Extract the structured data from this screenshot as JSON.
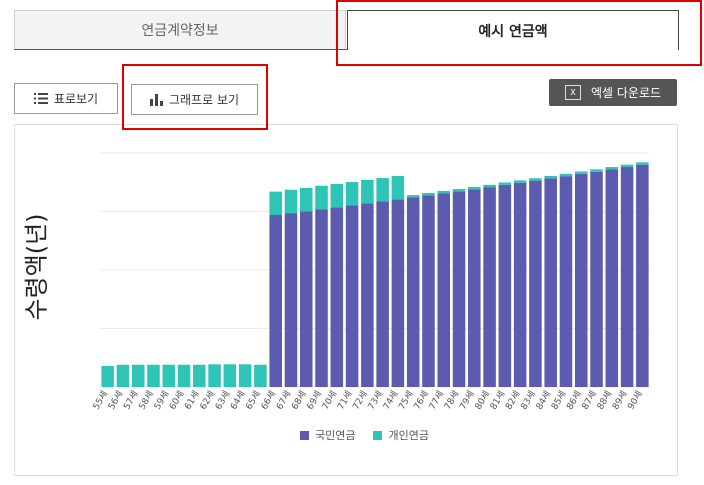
{
  "tabs": [
    {
      "label": "연금계약정보",
      "active": false
    },
    {
      "label": "예시 연금액",
      "active": true
    }
  ],
  "buttons": {
    "table_view": "표로보기",
    "graph_view": "그래프로 보기",
    "excel_download": "엑셀 다운로드"
  },
  "icons": {
    "table_view": "list-icon",
    "graph_view": "bar-chart-icon",
    "excel_download": "excel-icon"
  },
  "colors": {
    "national_pension": "#5b5bb0",
    "personal_pension": "#2ec4b6",
    "highlight": "#e00000"
  },
  "chart_data": {
    "type": "bar",
    "stacked": true,
    "ylabel": "수령액(년)",
    "xlabel": "",
    "categories": [
      "55세",
      "56세",
      "57세",
      "58세",
      "59세",
      "60세",
      "61세",
      "62세",
      "63세",
      "64세",
      "65세",
      "66세",
      "67세",
      "68세",
      "69세",
      "70세",
      "71세",
      "72세",
      "73세",
      "74세",
      "75세",
      "76세",
      "77세",
      "78세",
      "79세",
      "80세",
      "81세",
      "82세",
      "83세",
      "84세",
      "85세",
      "86세",
      "87세",
      "88세",
      "89세",
      "90세"
    ],
    "series": [
      {
        "name": "국민연금",
        "values": [
          0,
          0,
          0,
          0,
          0,
          0,
          0,
          0,
          0,
          0,
          0,
          7.35,
          7.43,
          7.51,
          7.6,
          7.68,
          7.76,
          7.85,
          7.93,
          8.02,
          8.1,
          8.19,
          8.28,
          8.36,
          8.45,
          8.54,
          8.64,
          8.73,
          8.82,
          8.92,
          9.01,
          9.11,
          9.2,
          9.3,
          9.4,
          9.5
        ]
      },
      {
        "name": "개인연금",
        "values": [
          0.9,
          0.95,
          0.95,
          0.95,
          0.95,
          0.95,
          0.95,
          0.97,
          0.97,
          0.97,
          0.95,
          1.0,
          1.0,
          1.0,
          1.0,
          1.0,
          1.0,
          1.0,
          1.0,
          1.0,
          0.1,
          0.1,
          0.1,
          0.1,
          0.1,
          0.1,
          0.1,
          0.1,
          0.1,
          0.1,
          0.1,
          0.1,
          0.1,
          0.1,
          0.1,
          0.1
        ]
      }
    ],
    "ylim": [
      0,
      10
    ],
    "grid": true,
    "legend_position": "bottom"
  }
}
